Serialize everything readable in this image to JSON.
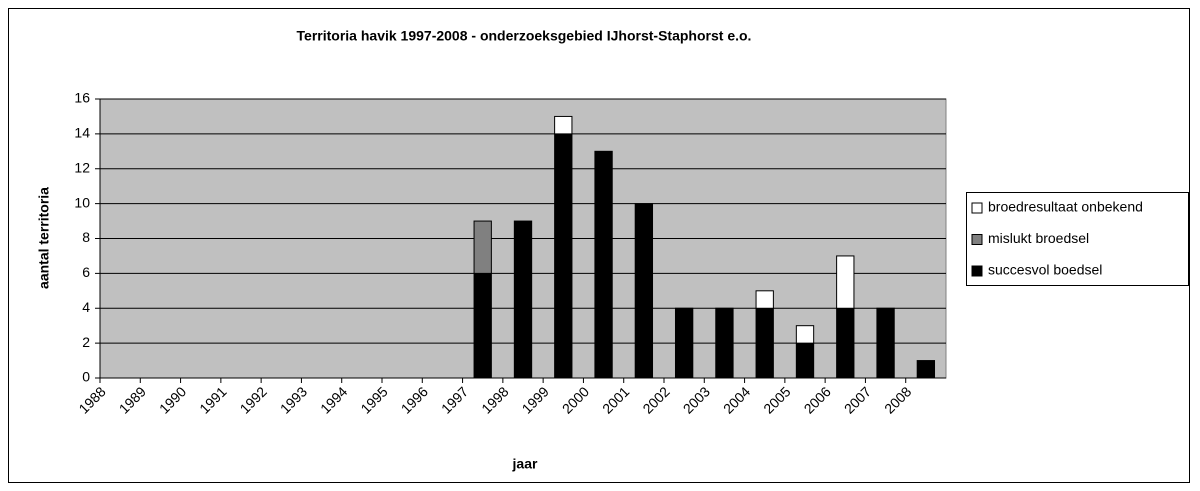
{
  "chart_data": {
    "type": "stacked-bar",
    "title": "Territoria havik 1997-2008 - onderzoeksgebied IJhorst-Staphorst e.o.",
    "xlabel": "jaar",
    "ylabel": "aantal territoria",
    "categories": [
      "1988",
      "1989",
      "1990",
      "1991",
      "1992",
      "1993",
      "1994",
      "1995",
      "1996",
      "1997",
      "1998",
      "1999",
      "2000",
      "2001",
      "2002",
      "2003",
      "2004",
      "2005",
      "2006",
      "2007",
      "2008"
    ],
    "series": [
      {
        "name": "succesvol boedsel",
        "color": "#000000",
        "values": [
          0,
          0,
          0,
          0,
          0,
          0,
          0,
          0,
          0,
          6,
          9,
          14,
          13,
          10,
          4,
          4,
          4,
          2,
          4,
          4,
          1
        ]
      },
      {
        "name": "mislukt broedsel",
        "color": "#808080",
        "values": [
          0,
          0,
          0,
          0,
          0,
          0,
          0,
          0,
          0,
          3,
          0,
          0,
          0,
          0,
          0,
          0,
          0,
          0,
          0,
          0,
          0
        ]
      },
      {
        "name": "broedresultaat onbekend",
        "color": "#ffffff",
        "values": [
          0,
          0,
          0,
          0,
          0,
          0,
          0,
          0,
          0,
          0,
          0,
          1,
          0,
          0,
          0,
          0,
          1,
          1,
          3,
          0,
          0
        ]
      }
    ],
    "ylim": [
      0,
      16
    ],
    "yticks": [
      0,
      2,
      4,
      6,
      8,
      10,
      12,
      14,
      16
    ],
    "grid": true,
    "legend": "right",
    "plot_background": "#c0c0c0"
  }
}
